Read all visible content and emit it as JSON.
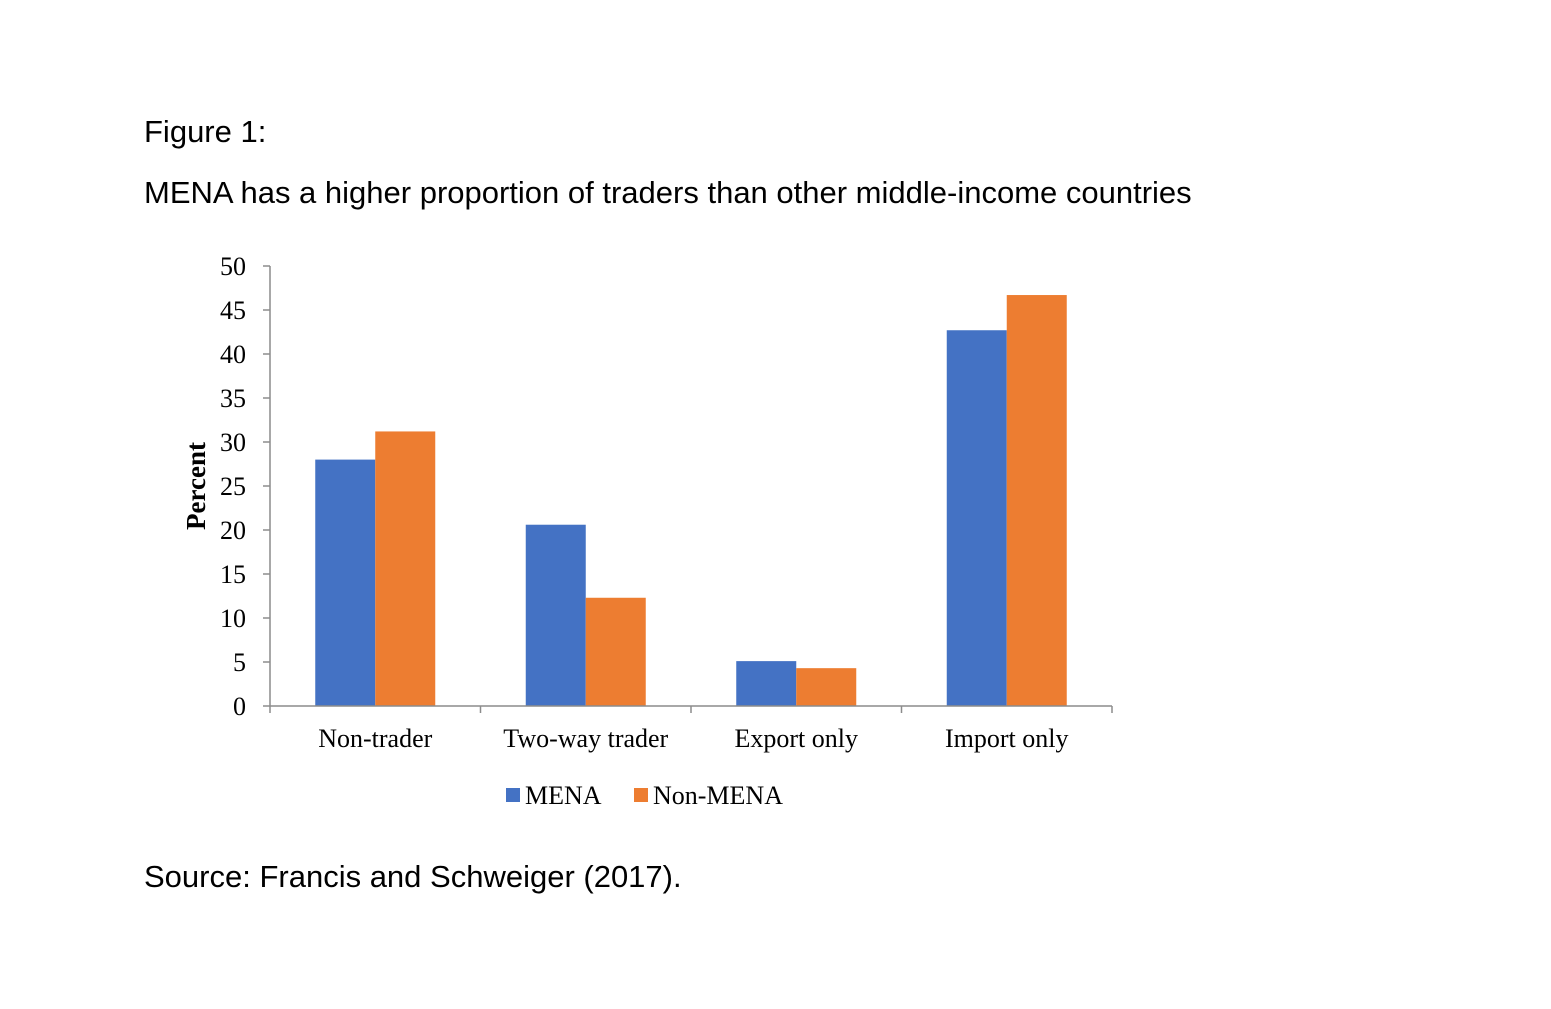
{
  "figure": {
    "label": "Figure 1:",
    "title": "MENA has a higher proportion of traders than other middle-income countries",
    "source": "Source: Francis and Schweiger (2017)."
  },
  "chart_data": {
    "type": "bar",
    "categories": [
      "Non-trader",
      "Two-way trader",
      "Export only",
      "Import only"
    ],
    "series": [
      {
        "name": "MENA",
        "color": "#4472C4",
        "values": [
          28.0,
          20.6,
          5.1,
          42.7
        ]
      },
      {
        "name": "Non-MENA",
        "color": "#ED7D31",
        "values": [
          31.2,
          12.3,
          4.3,
          46.7
        ]
      }
    ],
    "ylabel": "Percent",
    "xlabel": "",
    "ylim": [
      0,
      50
    ],
    "yticks": [
      0,
      5,
      10,
      15,
      20,
      25,
      30,
      35,
      40,
      45,
      50
    ],
    "grid": false,
    "legend_position": "bottom"
  }
}
